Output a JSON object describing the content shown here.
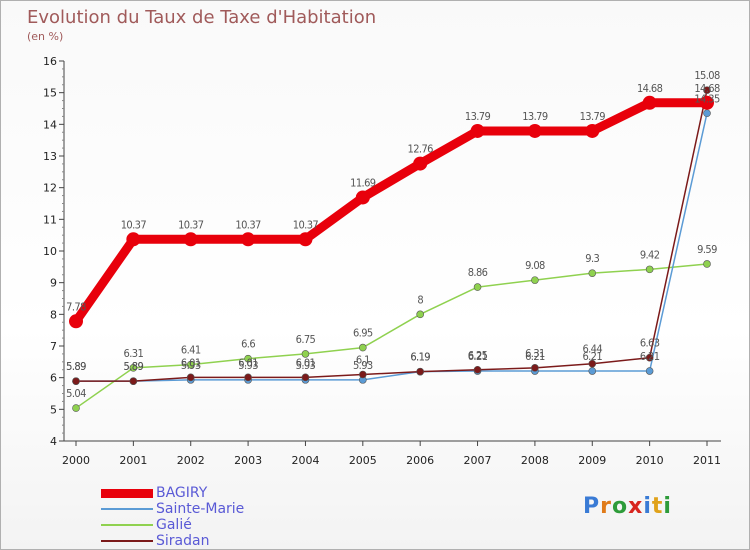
{
  "chart_data": {
    "type": "line",
    "title": "Evolution du Taux de Taxe d'Habitation",
    "subtitle": "(en %)",
    "xlabel": "",
    "ylabel": "",
    "categories": [
      "2000",
      "2001",
      "2002",
      "2003",
      "2004",
      "2005",
      "2006",
      "2007",
      "2008",
      "2009",
      "2010",
      "2011"
    ],
    "ylim": [
      4,
      16
    ],
    "yticks": [
      4,
      5,
      6,
      7,
      8,
      9,
      10,
      11,
      12,
      13,
      14,
      15,
      16
    ],
    "grid": false,
    "legend_position": "bottom-left",
    "series": [
      {
        "name": "BAGIRY",
        "color": "#e8000b",
        "values": [
          7.78,
          10.37,
          10.37,
          10.37,
          10.37,
          11.69,
          12.76,
          13.79,
          13.79,
          13.79,
          14.68,
          14.68
        ],
        "labels": [
          "7.78",
          "10.37",
          "10.37",
          "10.37",
          "10.37",
          "11.69",
          "12.76",
          "13.79",
          "13.79",
          "13.79",
          "14.68",
          "14.68"
        ]
      },
      {
        "name": "Sainte-Marie",
        "color": "#5b9bd5",
        "values": [
          5.89,
          5.89,
          5.93,
          5.93,
          5.93,
          5.93,
          6.19,
          6.21,
          6.21,
          6.21,
          6.21,
          14.35
        ],
        "labels": [
          "5.89",
          "5.89",
          "5.93",
          "5.93",
          "5.93",
          "5.93",
          "6.19",
          "6.21",
          "6.21",
          "6.21",
          "6.21",
          "14.35"
        ]
      },
      {
        "name": "Galié",
        "color": "#8fd14f",
        "values": [
          5.04,
          6.31,
          6.41,
          6.6,
          6.75,
          6.95,
          8,
          8.86,
          9.08,
          9.3,
          9.42,
          9.59
        ],
        "labels": [
          "5.04",
          "6.31",
          "6.41",
          "6.6",
          "6.75",
          "6.95",
          "8",
          "8.86",
          "9.08",
          "9.3",
          "9.42",
          "9.59"
        ]
      },
      {
        "name": "Siradan",
        "color": "#7b1a1a",
        "values": [
          5.89,
          5.89,
          6.01,
          6.01,
          6.01,
          6.1,
          6.19,
          6.25,
          6.31,
          6.44,
          6.63,
          15.08
        ],
        "labels": [
          "5.89",
          "5.89",
          "6.01",
          "6.01",
          "6.01",
          "6.1",
          "6.19",
          "6.25",
          "6.31",
          "6.44",
          "6.63",
          "15.08"
        ]
      }
    ]
  },
  "logo": {
    "letters": [
      {
        "ch": "P",
        "color": "#3a7bd5"
      },
      {
        "ch": "r",
        "color": "#e07b1a"
      },
      {
        "ch": "o",
        "color": "#2e9c3a"
      },
      {
        "ch": "x",
        "color": "#d8261f"
      },
      {
        "ch": "i",
        "color": "#3a7bd5"
      },
      {
        "ch": "t",
        "color": "#e0a21a"
      },
      {
        "ch": "i",
        "color": "#2e9c3a"
      }
    ]
  }
}
